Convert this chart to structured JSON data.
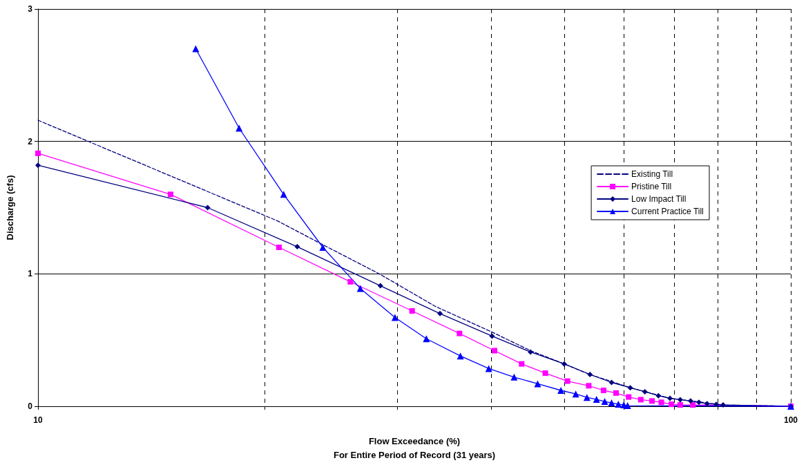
{
  "chart_data": {
    "type": "line",
    "xlabel": "Flow Exceedance (%)\nFor Entire Period of Record (31 years)",
    "ylabel": "Discharge (cfs)",
    "log": "x",
    "xlim": [
      10,
      100
    ],
    "xticks": [
      10,
      {
        "value": 20,
        "label": null
      },
      {
        "value": 30,
        "label": null
      },
      {
        "value": 40,
        "label": null
      },
      {
        "value": 50,
        "label": null
      },
      {
        "value": 60,
        "label": null
      },
      {
        "value": 70,
        "label": null
      },
      {
        "value": 80,
        "label": null
      },
      {
        "value": 90,
        "label": null
      },
      100
    ],
    "ylim": [
      0,
      3
    ],
    "yticks": [
      0,
      1,
      2,
      3
    ],
    "grid": true,
    "legend": "right",
    "series": [
      {
        "name": "Existing Till",
        "color": "#000080",
        "line_style": "dashed",
        "marker": "none",
        "x": [
          10,
          20.8,
          23.9,
          28.4,
          33.7,
          40.1,
          45.1,
          50.0,
          54.1,
          61.2,
          69.1,
          81.3,
          100
        ],
        "values": [
          2.16,
          1.4,
          1.22,
          1.0,
          0.755,
          0.56,
          0.42,
          0.32,
          0.24,
          0.14,
          0.06,
          0.01,
          0
        ]
      },
      {
        "name": "Pristine Till",
        "color": "#ff00ff",
        "line_style": "solid",
        "marker": "square",
        "x": [
          10,
          15.0,
          20.9,
          26.0,
          31.4,
          36.3,
          40.4,
          43.9,
          47.2,
          50.5,
          53.9,
          56.4,
          58.6,
          60.9,
          63.2,
          65.4,
          67.3,
          69.4,
          71.3,
          74.1,
          100
        ],
        "values": [
          1.91,
          1.6,
          1.2,
          0.94,
          0.72,
          0.55,
          0.42,
          0.32,
          0.25,
          0.19,
          0.155,
          0.12,
          0.1,
          0.07,
          0.05,
          0.04,
          0.03,
          0.015,
          0.01,
          0.01,
          0
        ]
      },
      {
        "name": "Low Impact Till",
        "color": "#000080",
        "line_style": "solid",
        "marker": "diamond",
        "x": [
          10,
          16.8,
          22.1,
          28.5,
          34.2,
          40.1,
          45.1,
          50.0,
          54.1,
          57.8,
          61.2,
          64.0,
          66.7,
          69.1,
          71.3,
          73.6,
          75.5,
          77.4,
          79.6,
          81.3,
          100
        ],
        "values": [
          1.82,
          1.5,
          1.205,
          0.91,
          0.7,
          0.53,
          0.41,
          0.32,
          0.24,
          0.18,
          0.14,
          0.11,
          0.08,
          0.06,
          0.05,
          0.04,
          0.03,
          0.02,
          0.015,
          0.01,
          0
        ]
      },
      {
        "name": "Current Practice Till",
        "color": "#0000ff",
        "line_style": "solid",
        "marker": "triangle",
        "x": [
          16.2,
          18.5,
          21.2,
          23.9,
          26.8,
          29.8,
          32.8,
          36.4,
          39.7,
          42.9,
          46.1,
          49.5,
          51.8,
          53.6,
          55.2,
          56.6,
          57.8,
          59.0,
          60.0,
          60.7,
          100
        ],
        "values": [
          2.7,
          2.1,
          1.6,
          1.2,
          0.89,
          0.67,
          0.51,
          0.38,
          0.285,
          0.22,
          0.17,
          0.12,
          0.093,
          0.067,
          0.052,
          0.036,
          0.026,
          0.016,
          0.01,
          0.005,
          0
        ]
      }
    ]
  }
}
